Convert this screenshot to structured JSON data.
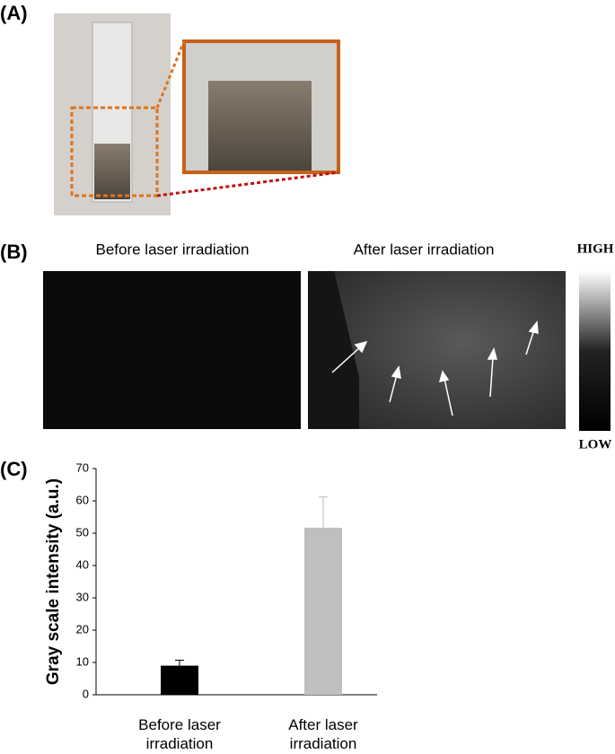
{
  "panels": {
    "a": "(A)",
    "b": "(B)",
    "c": "(C)"
  },
  "panel_b": {
    "left_title": "Before laser irradiation",
    "right_title": "After laser irradiation",
    "colorbar_high": "HIGH",
    "colorbar_low": "LOW"
  },
  "chart_data": {
    "type": "bar",
    "y_label": "Gray scale intensity (a.u.)",
    "categories": [
      "Before laser irradiation",
      "After laser irradiation"
    ],
    "values": [
      9,
      51.7
    ],
    "errors": [
      1.7,
      9.5
    ],
    "colors": [
      "#000000",
      "#bfbfbf"
    ],
    "ylim": [
      0,
      70
    ],
    "yticks": [
      0,
      10,
      20,
      30,
      40,
      50,
      60,
      70
    ]
  }
}
